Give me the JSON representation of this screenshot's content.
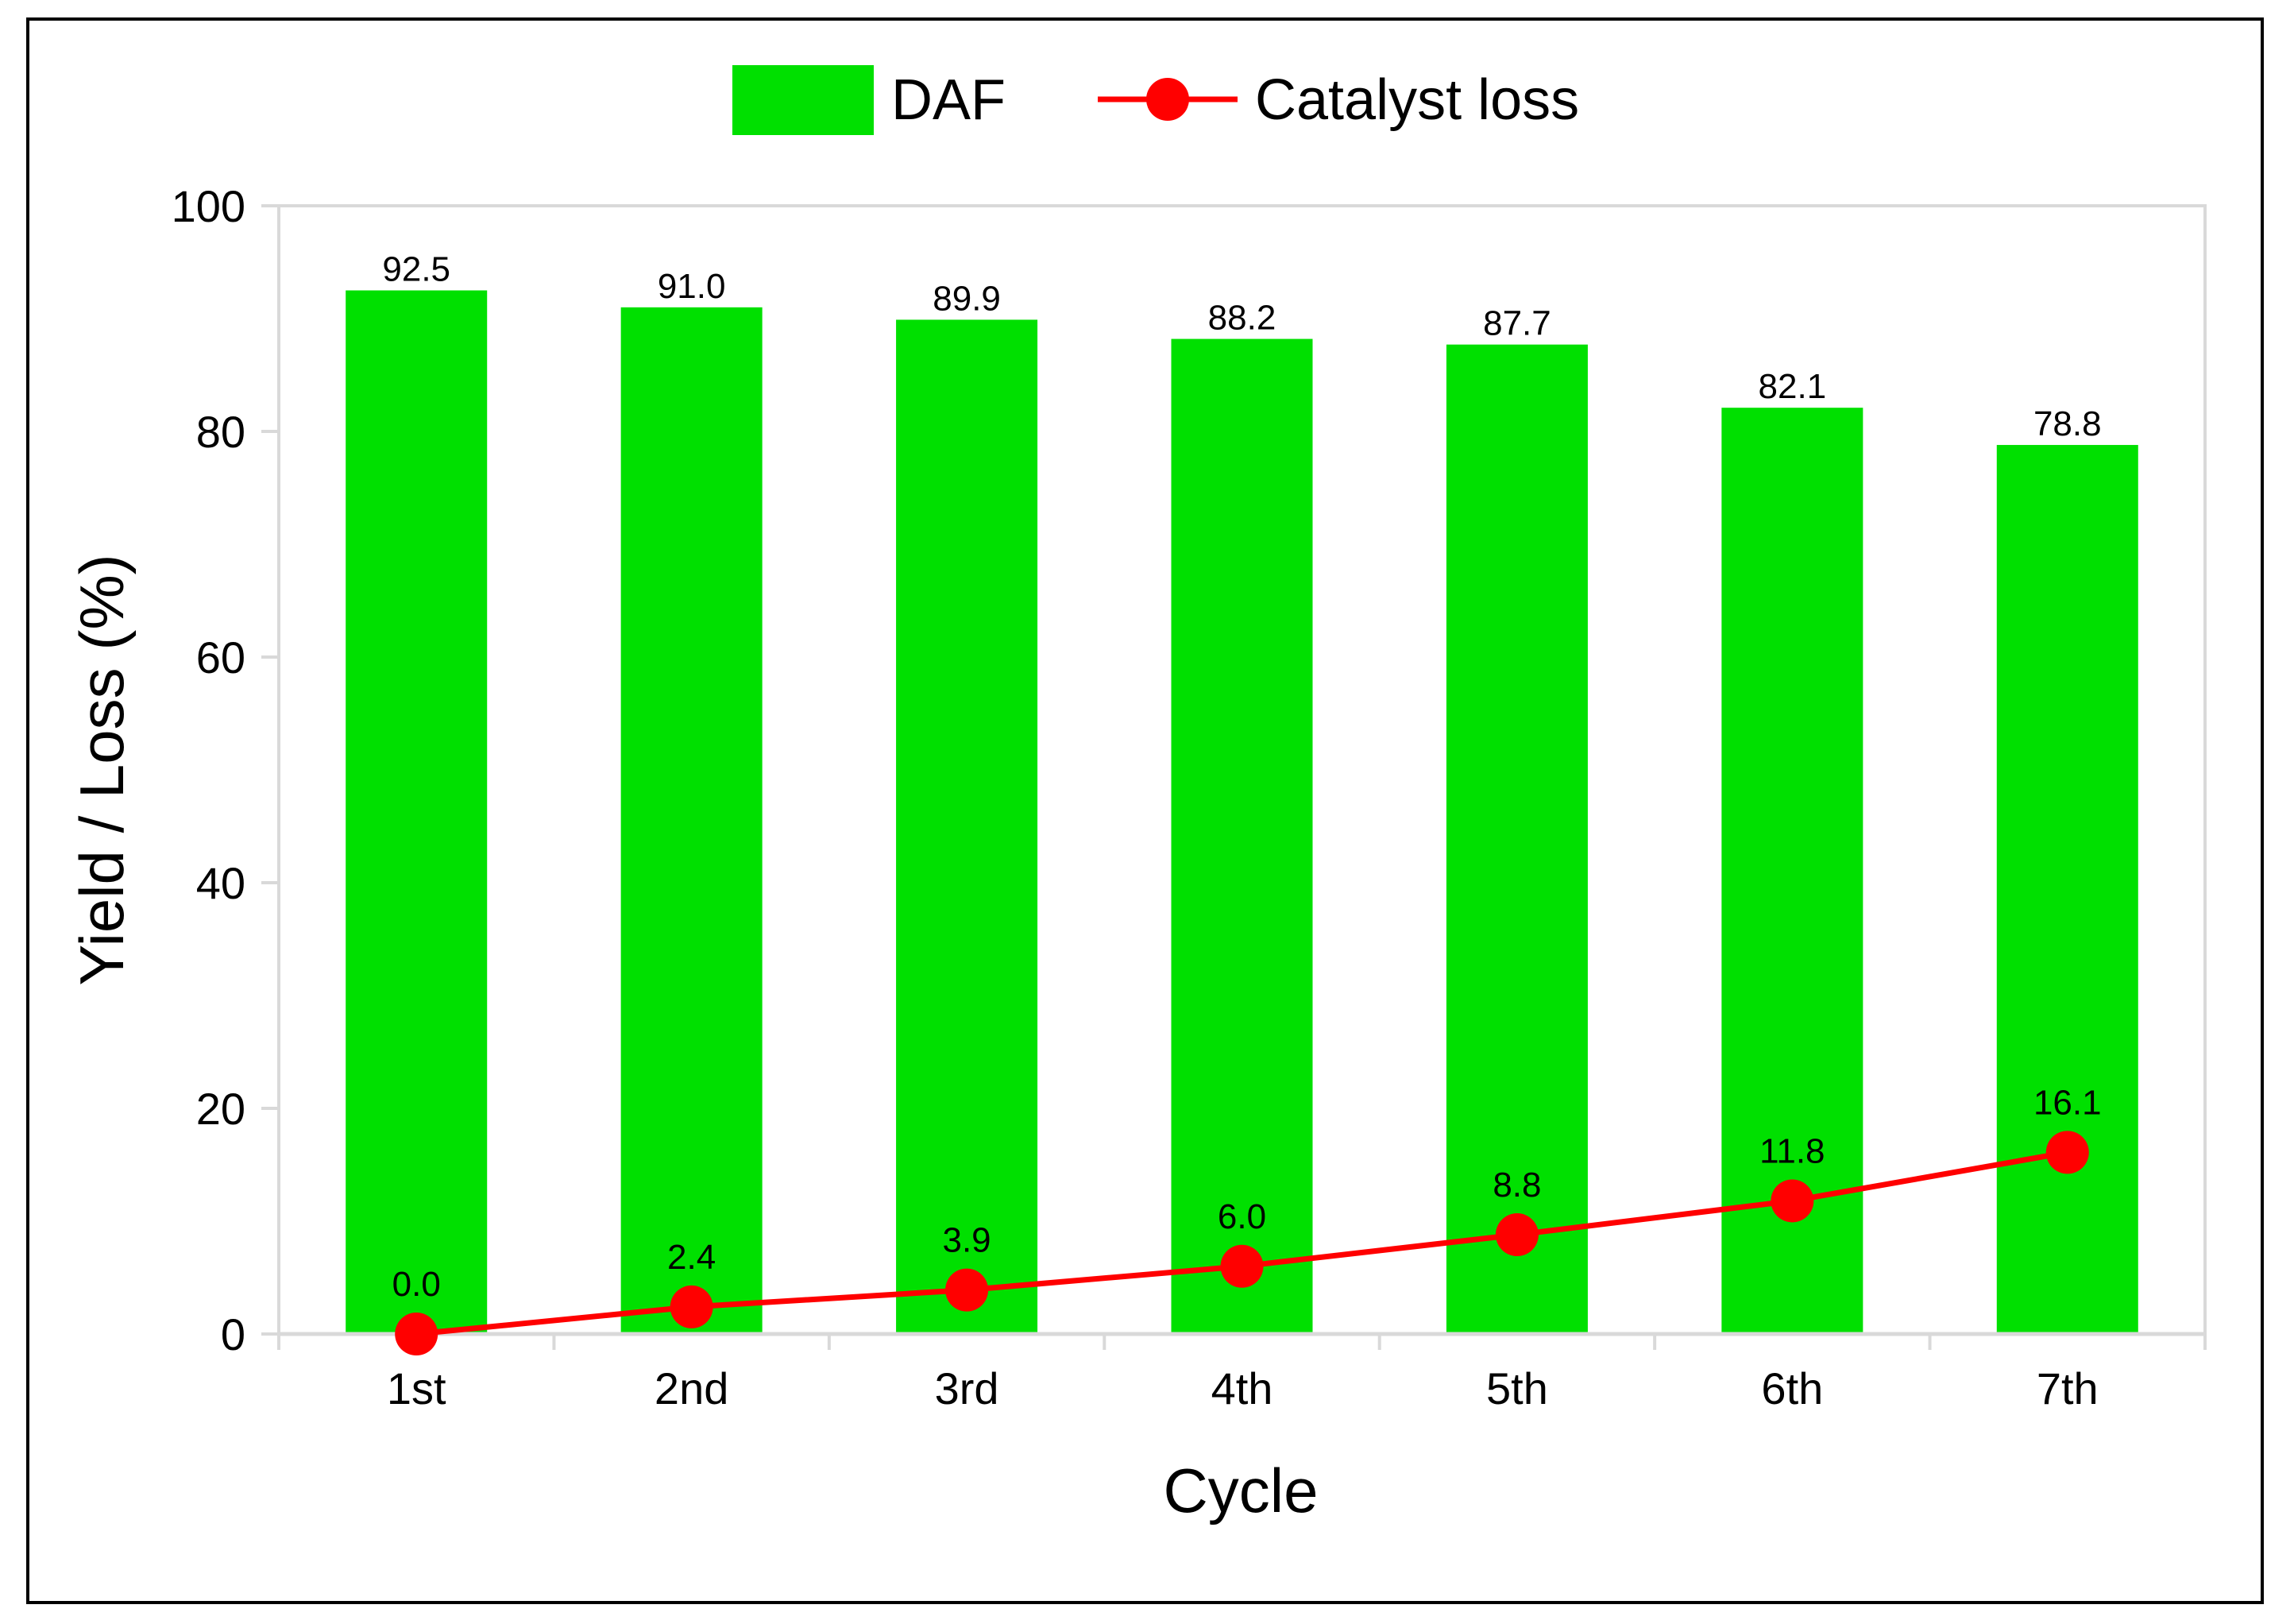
{
  "chart_data": {
    "type": "bar",
    "title": "",
    "xlabel": "Cycle",
    "ylabel": "Yield / Loss (%)",
    "ylim": [
      0,
      100
    ],
    "yticks": [
      0,
      20,
      40,
      60,
      80,
      100
    ],
    "grid": false,
    "legend_position": "top",
    "categories": [
      "1st",
      "2nd",
      "3rd",
      "4th",
      "5th",
      "6th",
      "7th"
    ],
    "series": [
      {
        "name": "DAF",
        "type": "bar",
        "color": "#00e000",
        "values": [
          92.5,
          91.0,
          89.9,
          88.2,
          87.7,
          82.1,
          78.8
        ],
        "labels": [
          "92.5",
          "91.0",
          "89.9",
          "88.2",
          "87.7",
          "82.1",
          "78.8"
        ]
      },
      {
        "name": "Catalyst loss",
        "type": "line",
        "color": "#ff0000",
        "marker": "circle",
        "values": [
          0.0,
          2.4,
          3.9,
          6.0,
          8.8,
          11.8,
          16.1
        ],
        "labels": [
          "0.0",
          "2.4",
          "3.9",
          "6.0",
          "8.8",
          "11.8",
          "16.1"
        ]
      }
    ]
  }
}
